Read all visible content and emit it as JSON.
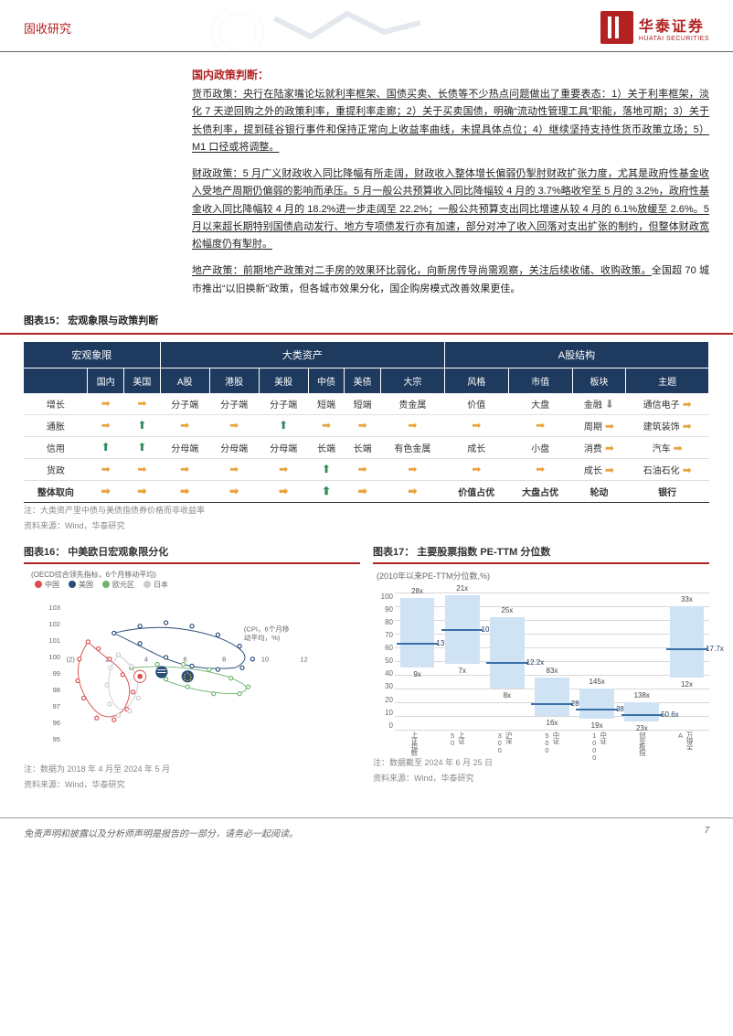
{
  "header": {
    "category": "固收研究",
    "logo_cn": "华泰证券",
    "logo_en": "HUATAI SECURITIES"
  },
  "policy": {
    "title": "国内政策判断：",
    "monetary": "货币政策：央行在陆家嘴论坛就利率框架、国债买卖、长债等不少热点问题做出了重要表态：1）关于利率框架，淡化 7 天逆回购之外的政策利率，重提利率走廊；2）关于买卖国债，明确“流动性管理工具”职能，落地可期；3）关于长债利率，提到硅谷银行事件和保持正常向上收益率曲线，未提具体点位；4）继续坚持支持性货币政策立场；5）M1 口径或将调整。",
    "fiscal": "财政政策：5 月广义财政收入同比降幅有所走阔，财政收入整体增长偏弱仍掣肘财政扩张力度，尤其是政府性基金收入受地产周期仍偏弱的影响而承压。5 月一般公共预算收入同比降幅较 4 月的 3.7%略收窄至 5 月的 3.2%，政府性基金收入同比降幅较 4 月的 18.2%进一步走阔至 22.2%；一般公共预算支出同比增速从较 4 月的 6.1%放缓至 2.6%。",
    "fiscal_ul": "5 月以来超长期特别国债启动发行、地方专项债发行亦有加速，部分对冲了收入回落对支出扩张的制约，但整体财政宽松幅度仍有掣肘。",
    "property": "地产政策：前期地产政策对二手房的效果环比弱化，向新房传导尚需观察，关注后续收储、收购政策。",
    "property_tail": "全国超 70 城市推出“以旧换新”政策，但各城市效果分化，国企购房模式改善效果更佳。"
  },
  "table15": {
    "title": "图表15： 宏观象限与政策判断",
    "groups": [
      "宏观象限",
      "大类资产",
      "A股结构"
    ],
    "headers": {
      "macro": [
        "国内",
        "美国"
      ],
      "assets": [
        "A股",
        "港股",
        "美股",
        "中债",
        "美债",
        "大宗"
      ],
      "astock": [
        "风格",
        "市值",
        "板块",
        "主题"
      ]
    },
    "rows": [
      {
        "label": "增长",
        "cells": [
          "r",
          "r",
          "分子端",
          "分子端",
          "分子端",
          "短端",
          "短端",
          "贵金属",
          "价值",
          "大盘",
          "金融",
          "通信电子"
        ],
        "dir": [
          "",
          "",
          "",
          "",
          "",
          "",
          "",
          "",
          "",
          "",
          "d",
          "r"
        ]
      },
      {
        "label": "通胀",
        "cells": [
          "r",
          "u",
          "r",
          "r",
          "u",
          "r",
          "r",
          "r",
          "r",
          "r",
          "周期",
          "建筑装饰"
        ],
        "dir": [
          "",
          "",
          "",
          "",
          "",
          "",
          "",
          "",
          "",
          "",
          "r",
          "r"
        ]
      },
      {
        "label": "信用",
        "cells": [
          "u",
          "u",
          "分母端",
          "分母端",
          "分母端",
          "长端",
          "长端",
          "有色金属",
          "成长",
          "小盘",
          "消费",
          "汽车"
        ],
        "dir": [
          "",
          "",
          "",
          "",
          "",
          "",
          "",
          "",
          "",
          "",
          "r",
          "r"
        ]
      },
      {
        "label": "货政",
        "cells": [
          "r",
          "r",
          "r",
          "r",
          "r",
          "u",
          "r",
          "r",
          "r",
          "r",
          "成长",
          "石油石化"
        ],
        "dir": [
          "",
          "",
          "",
          "",
          "",
          "",
          "",
          "",
          "",
          "",
          "r",
          "r"
        ]
      },
      {
        "label": "整体取向",
        "bold": true,
        "cells": [
          "r",
          "r",
          "r",
          "r",
          "r",
          "u",
          "r",
          "r",
          "价值占优",
          "大盘占优",
          "轮动",
          "银行"
        ],
        "dir": [
          "",
          "",
          "",
          "",
          "",
          "",
          "",
          "",
          "",
          "",
          "",
          ""
        ]
      }
    ],
    "note1": "注：大类资产里中债与美债指债券价格而非收益率",
    "note2": "资料来源：Wind，华泰研究"
  },
  "chart16": {
    "title": "图表16： 中美欧日宏观象限分化",
    "subtitle": "(OECD综合领先指标，6个月移动平均)",
    "cpi_label": "(CPI，6个月移动平均，%)",
    "legend": [
      {
        "name": "中国",
        "color": "#d94f4f"
      },
      {
        "name": "美国",
        "color": "#2a4d7a"
      },
      {
        "name": "欧元区",
        "color": "#6fb36f"
      },
      {
        "name": "日本",
        "color": "#cccccc"
      }
    ],
    "y_ticks": [
      103,
      102,
      101,
      100,
      99,
      98,
      97,
      96,
      95
    ],
    "x_ticks": [
      "(2)",
      "2",
      "4",
      "6",
      "8",
      "10",
      "12"
    ],
    "note1": "注：数据为 2018 年 4 月至 2024 年 5 月",
    "note2": "资料来源：Wind，华泰研究"
  },
  "chart17": {
    "title": "图表17： 主要股票指数 PE-TTM 分位数",
    "subtitle": "(2010年以来PE-TTM分位数,%)",
    "y_ticks": [
      100,
      90,
      80,
      70,
      60,
      50,
      40,
      30,
      20,
      10,
      0
    ],
    "bars": [
      {
        "name": "上证指数",
        "low": 9,
        "high": 28,
        "cur": 13.3,
        "low_lbl": "9x",
        "high_lbl": "28x",
        "cur_lbl": "13.3x"
      },
      {
        "name": "上证50",
        "low": 7,
        "high": 21,
        "cur": 10.0,
        "low_lbl": "7x",
        "high_lbl": "21x",
        "cur_lbl": "10.0x"
      },
      {
        "name": "沪深300",
        "low": 8,
        "high": 25,
        "cur": 12.2,
        "low_lbl": "8x",
        "high_lbl": "25x",
        "cur_lbl": "12.2x"
      },
      {
        "name": "中证500",
        "low": 16,
        "high": 83,
        "cur": 28.6,
        "low_lbl": "16x",
        "high_lbl": "83x",
        "cur_lbl": "28.6x"
      },
      {
        "name": "中证1000",
        "low": 19,
        "high": 145,
        "cur": 38.8,
        "low_lbl": "19x",
        "high_lbl": "145x",
        "cur_lbl": "38.8x"
      },
      {
        "name": "创业板指",
        "low": 23,
        "high": 138,
        "cur": 50.6,
        "low_lbl": "23x",
        "high_lbl": "138x",
        "cur_lbl": "50.6x"
      },
      {
        "name": "万得全A",
        "low": 12,
        "high": 33,
        "cur": 17.7,
        "low_lbl": "12x",
        "high_lbl": "33x",
        "cur_lbl": "17.7x"
      }
    ],
    "bar_color": "#cfe3f5",
    "mark_color": "#3a6fa8",
    "note1": "注：数据截至 2024 年 6 月 25 日",
    "note2": "资料来源：Wind，华泰研究"
  },
  "footer": {
    "disclaimer": "免责声明和披露以及分析师声明是报告的一部分，请务必一起阅读。",
    "page": "7"
  }
}
